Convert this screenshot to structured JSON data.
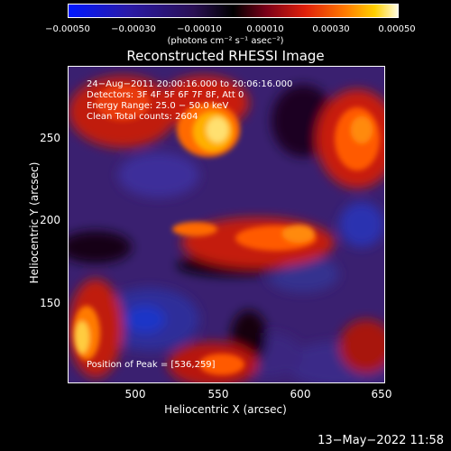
{
  "colorbar": {
    "ticks": [
      "−0.00050",
      "−0.00030",
      "−0.00010",
      "0.00010",
      "0.00030",
      "0.00050"
    ],
    "units": "(photons cm⁻² s⁻¹ asec⁻²)"
  },
  "title": "Reconstructed RHESSI Image",
  "info": {
    "time": "24−Aug−2011 20:00:16.000 to 20:06:16.000",
    "detectors": "Detectors: 3F 4F 5F 6F 7F 8F, Att 0",
    "energy": "Energy Range: 25.0 − 50.0 keV",
    "clean": "Clean     Total counts:   2604"
  },
  "peak": "Position of Peak = [536,259]",
  "axes": {
    "xlabel": "Heliocentric X (arcsec)",
    "ylabel": "Heliocentric Y (arcsec)",
    "xticks": [
      "500",
      "550",
      "600",
      "650"
    ],
    "yticks": [
      "250",
      "200",
      "150"
    ]
  },
  "footer": "13−May−2022 11:58"
}
